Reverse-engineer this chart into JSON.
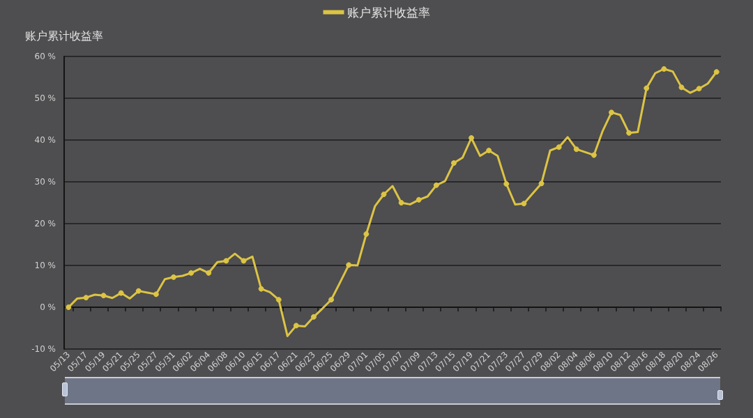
{
  "chart_data": {
    "type": "line",
    "ylabel": "账户累计收益率",
    "categories": [
      "05/13",
      null,
      "05/17",
      null,
      "05/19",
      null,
      "05/21",
      null,
      "05/25",
      null,
      "05/27",
      null,
      "05/31",
      null,
      "06/02",
      null,
      "06/04",
      null,
      "06/08",
      null,
      "06/10",
      null,
      "06/15",
      null,
      "06/17",
      null,
      "06/21",
      null,
      "06/23",
      null,
      "06/25",
      null,
      "06/29",
      null,
      "07/01",
      null,
      "07/05",
      null,
      "07/07",
      null,
      "07/09",
      null,
      "07/13",
      null,
      "07/15",
      null,
      "07/19",
      null,
      "07/21",
      null,
      "07/23",
      null,
      "07/27",
      null,
      "07/29",
      null,
      "08/02",
      null,
      "08/04",
      null,
      "08/06",
      null,
      "08/10",
      null,
      "08/12",
      null,
      "08/16",
      null,
      "08/18",
      null,
      "08/20",
      null,
      "08/24",
      null,
      "08/26"
    ],
    "series": [
      {
        "name": "账户累计收益率",
        "color": "#dcc444",
        "values": [
          0,
          2.1,
          2.3,
          3.0,
          2.8,
          2.2,
          3.4,
          2.1,
          3.9,
          3.5,
          3.1,
          6.7,
          7.2,
          7.5,
          8.2,
          9.2,
          8.2,
          10.8,
          11.1,
          12.8,
          11.1,
          12.1,
          4.4,
          3.6,
          1.8,
          -6.9,
          -4.4,
          -4.6,
          -2.3,
          -0.3,
          1.8,
          5.9,
          10.1,
          10.0,
          17.5,
          24.2,
          27.0,
          29.0,
          25.0,
          24.6,
          25.7,
          26.5,
          29.2,
          30.2,
          34.5,
          35.8,
          40.5,
          36.2,
          37.5,
          36.2,
          29.5,
          24.6,
          24.8,
          27.2,
          29.6,
          37.5,
          38.3,
          40.7,
          37.8,
          37.1,
          36.4,
          42.2,
          46.6,
          46.0,
          41.7,
          41.9,
          52.4,
          56.0,
          57.0,
          56.4,
          52.6,
          51.3,
          52.3,
          53.5,
          56.3
        ]
      }
    ],
    "ylim": [
      -10,
      60
    ],
    "yticks": [
      {
        "value": -10,
        "label": "-10 %"
      },
      {
        "value": 0,
        "label": "0 %"
      },
      {
        "value": 10,
        "label": "10 %"
      },
      {
        "value": 20,
        "label": "20 %"
      },
      {
        "value": 30,
        "label": "30 %"
      },
      {
        "value": 40,
        "label": "40 %"
      },
      {
        "value": 50,
        "label": "50 %"
      },
      {
        "value": 60,
        "label": "60 %"
      }
    ],
    "grid": "y",
    "legend": "top",
    "marker": "circle",
    "line_style": "solid"
  }
}
